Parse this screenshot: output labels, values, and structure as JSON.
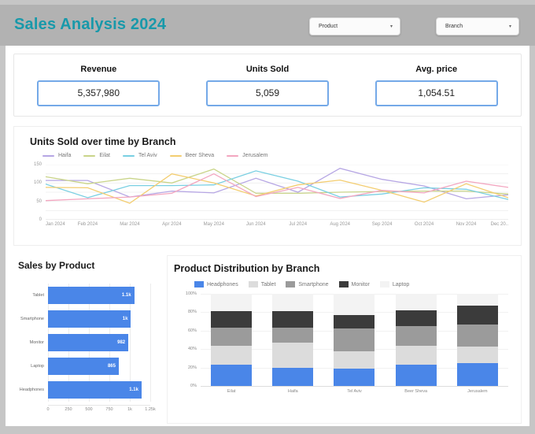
{
  "header": {
    "title": "Sales Analysis 2024",
    "title_color": "#1899aa",
    "filters": [
      {
        "label": "Product",
        "caret": "▾"
      },
      {
        "label": "Branch",
        "caret": "▾"
      }
    ]
  },
  "kpis": [
    {
      "label": "Revenue",
      "value": "5,357,980"
    },
    {
      "label": "Units Sold",
      "value": "5,059"
    },
    {
      "label": "Avg. price",
      "value": "1,054.51"
    }
  ],
  "colors": {
    "kpi_border": "#74a9e8",
    "bar_blue": "#4a86e8",
    "header_gray": "#b2b2b2"
  },
  "chart_data": [
    {
      "type": "line",
      "title": "Units Sold over time by Branch",
      "x": [
        "Jan 2024",
        "Feb 2024",
        "Mar 2024",
        "Apr 2024",
        "May 2024",
        "Jun 2024",
        "Jul 2024",
        "Aug 2024",
        "Sep 2024",
        "Oct 2024",
        "Nov 2024",
        "Dec 20.."
      ],
      "ylim": [
        0,
        150
      ],
      "y_ticks": [
        150,
        100,
        50,
        0
      ],
      "grid_step": 25,
      "legend_position": "top",
      "series": [
        {
          "name": "Haifa",
          "color": "#b6a6e4",
          "values": [
            107,
            107,
            62,
            78,
            73,
            113,
            75,
            140,
            110,
            92,
            57,
            68
          ]
        },
        {
          "name": "Eilat",
          "color": "#c9d489",
          "values": [
            117,
            98,
            113,
            100,
            138,
            72,
            72,
            75,
            77,
            78,
            78,
            70
          ]
        },
        {
          "name": "Tel Aviv",
          "color": "#79cfe2",
          "values": [
            97,
            60,
            93,
            93,
            95,
            133,
            105,
            62,
            70,
            87,
            83,
            55
          ]
        },
        {
          "name": "Beer Sheva",
          "color": "#f3cd70",
          "values": [
            88,
            87,
            45,
            125,
            100,
            65,
            95,
            108,
            80,
            48,
            98,
            60
          ]
        },
        {
          "name": "Jerusalem",
          "color": "#f3a6c0",
          "values": [
            52,
            57,
            62,
            72,
            125,
            63,
            88,
            58,
            80,
            73,
            105,
            88
          ]
        }
      ]
    },
    {
      "type": "bar",
      "title": "Sales by Product",
      "orientation": "horizontal",
      "categories": [
        "Tablet",
        "Smartphone",
        "Monitor",
        "Laptop",
        "Headphones"
      ],
      "values": [
        1054,
        1014,
        982,
        865,
        1144
      ],
      "value_labels": [
        "1.1k",
        "1k",
        "982",
        "865",
        "1.1k"
      ],
      "bar_color": "#4a86e8",
      "xlim": [
        0,
        1250
      ],
      "x_ticks": [
        {
          "v": 0,
          "label": "0"
        },
        {
          "v": 250,
          "label": "250"
        },
        {
          "v": 500,
          "label": "500"
        },
        {
          "v": 750,
          "label": "750"
        },
        {
          "v": 1000,
          "label": "1k"
        },
        {
          "v": 1250,
          "label": "1.25k"
        }
      ]
    },
    {
      "type": "stacked-bar",
      "title": "Product Distribution by Branch",
      "categories": [
        "Eilat",
        "Haifa",
        "Tel Aviv",
        "Beer Sheva",
        "Jerusalem"
      ],
      "ylim": [
        0,
        100
      ],
      "y_ticks": [
        "100%",
        "80%",
        "60%",
        "40%",
        "20%",
        "0%"
      ],
      "legend_position": "top",
      "series": [
        {
          "name": "Headphones",
          "color": "#4a86e8",
          "values": [
            23,
            20,
            19,
            23,
            25
          ]
        },
        {
          "name": "Tablet",
          "color": "#dcdcdc",
          "values": [
            21,
            27,
            19,
            21,
            18
          ]
        },
        {
          "name": "Smartphone",
          "color": "#9b9b9b",
          "values": [
            19,
            16,
            24,
            21,
            24
          ]
        },
        {
          "name": "Monitor",
          "color": "#3b3b3b",
          "values": [
            18,
            18,
            15,
            17,
            20
          ]
        },
        {
          "name": "Laptop",
          "color": "#f3f3f3",
          "values": [
            19,
            19,
            23,
            18,
            13
          ]
        }
      ]
    }
  ]
}
